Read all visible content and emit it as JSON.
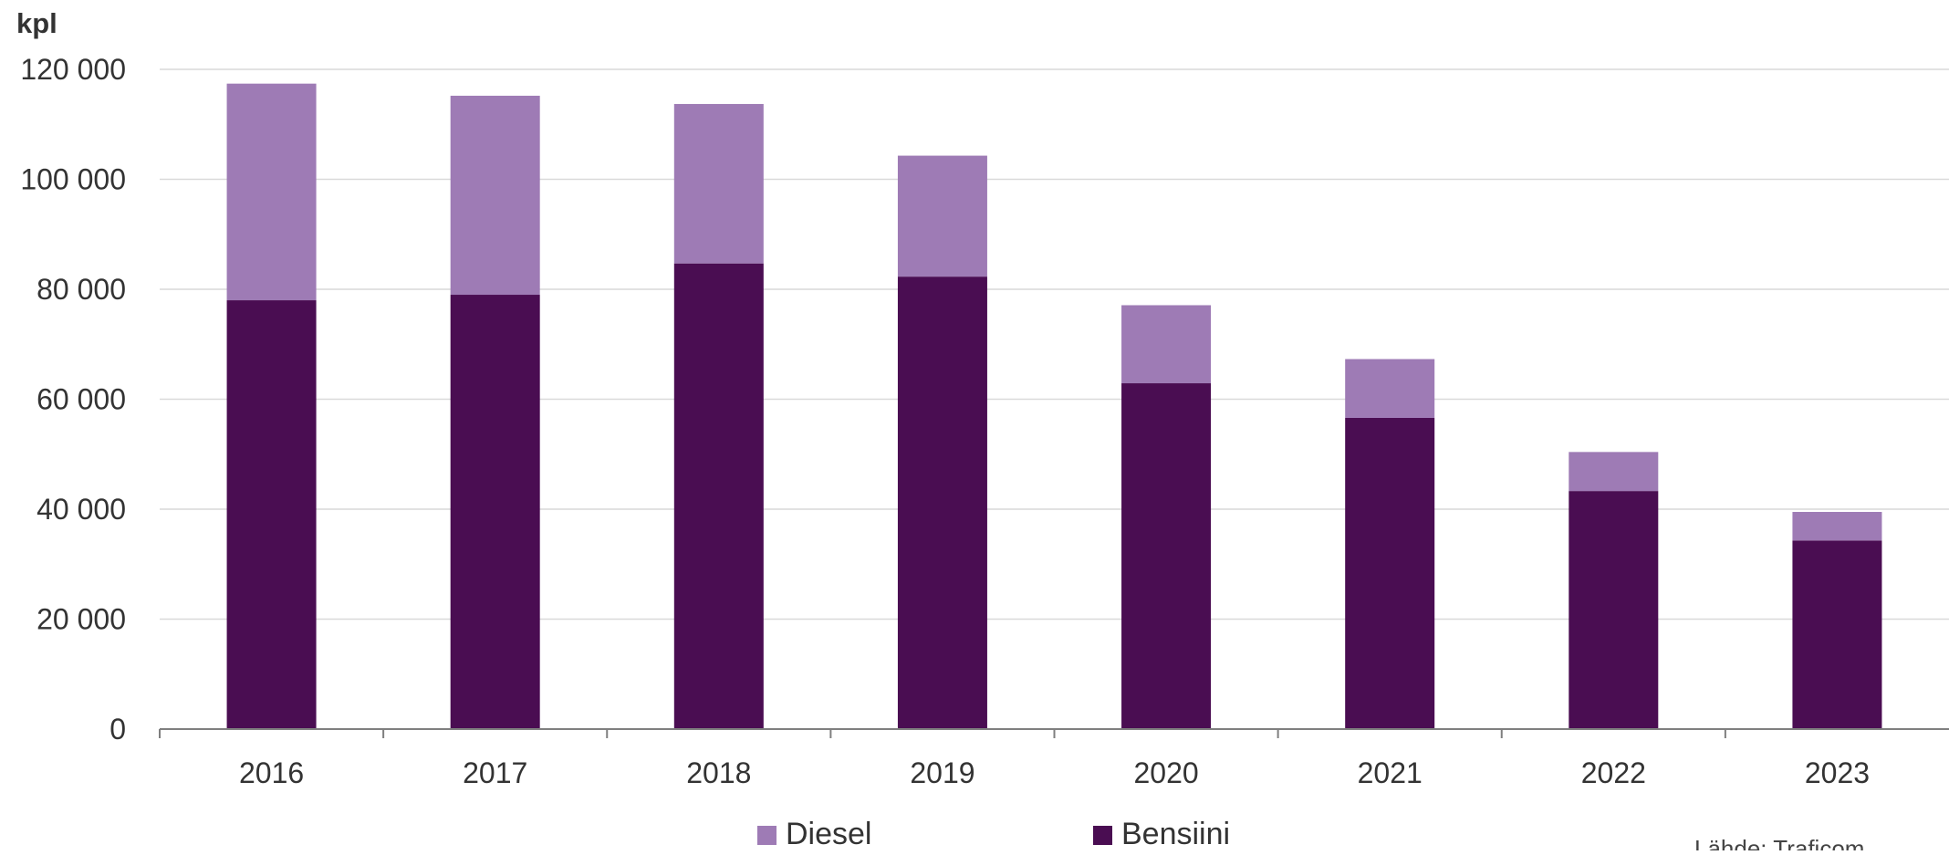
{
  "chart_data": {
    "type": "bar",
    "stacked": true,
    "unit_label": "kpl",
    "categories": [
      "2016",
      "2017",
      "2018",
      "2019",
      "2020",
      "2021",
      "2022",
      "2023"
    ],
    "series": [
      {
        "name": "Bensiini",
        "color": "#4a0d52",
        "values": [
          78000,
          79000,
          84700,
          82300,
          62900,
          56600,
          43300,
          34300
        ]
      },
      {
        "name": "Diesel",
        "color": "#9e7bb5",
        "values": [
          39400,
          36200,
          29000,
          22000,
          14200,
          10700,
          7100,
          5200
        ]
      }
    ],
    "ylim": [
      0,
      120000
    ],
    "yticks": [
      0,
      20000,
      40000,
      60000,
      80000,
      100000,
      120000
    ],
    "ytick_labels": [
      "0",
      "20 000",
      "40 000",
      "60 000",
      "80 000",
      "100 000",
      "120 000"
    ],
    "grid": true,
    "legend": {
      "position": "bottom",
      "order": [
        "Diesel",
        "Bensiini"
      ]
    },
    "source_note": "Lähde: Traficom"
  }
}
